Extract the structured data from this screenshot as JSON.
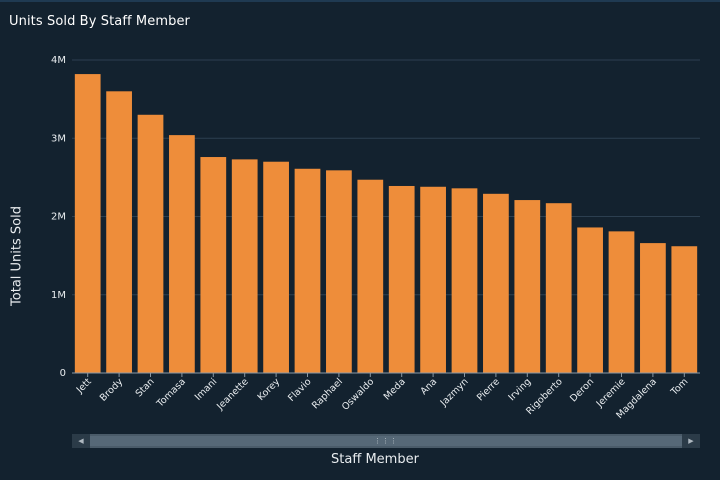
{
  "chart_data": {
    "type": "bar",
    "title": "Units Sold By Staff Member",
    "xlabel": "Staff Member",
    "ylabel": "Total Units Sold",
    "categories": [
      "Jett",
      "Brody",
      "Stan",
      "Tomasa",
      "Imani",
      "Jeanette",
      "Korey",
      "Flavio",
      "Raphael",
      "Oswaldo",
      "Meda",
      "Ana",
      "Jazmyn",
      "Pierre",
      "Irving",
      "Rigoberto",
      "Deron",
      "Jeremie",
      "Magdalena",
      "Tom"
    ],
    "values": [
      3820000,
      3600000,
      3300000,
      3040000,
      2760000,
      2730000,
      2700000,
      2610000,
      2590000,
      2470000,
      2390000,
      2380000,
      2360000,
      2290000,
      2210000,
      2170000,
      1860000,
      1810000,
      1660000,
      1620000
    ],
    "ylim": [
      0,
      4000000
    ],
    "yticks": [
      {
        "value": 0,
        "label": "0"
      },
      {
        "value": 1000000,
        "label": "1M"
      },
      {
        "value": 2000000,
        "label": "2M"
      },
      {
        "value": 3000000,
        "label": "3M"
      },
      {
        "value": 4000000,
        "label": "4M"
      }
    ],
    "grid": true,
    "bar_color": "#ee8d3a",
    "gridline_color": "#2c3f50"
  },
  "scrollbar": {
    "left_icon": "left-arrow-icon",
    "right_icon": "right-arrow-icon",
    "grip_icon": "grip-icon"
  }
}
